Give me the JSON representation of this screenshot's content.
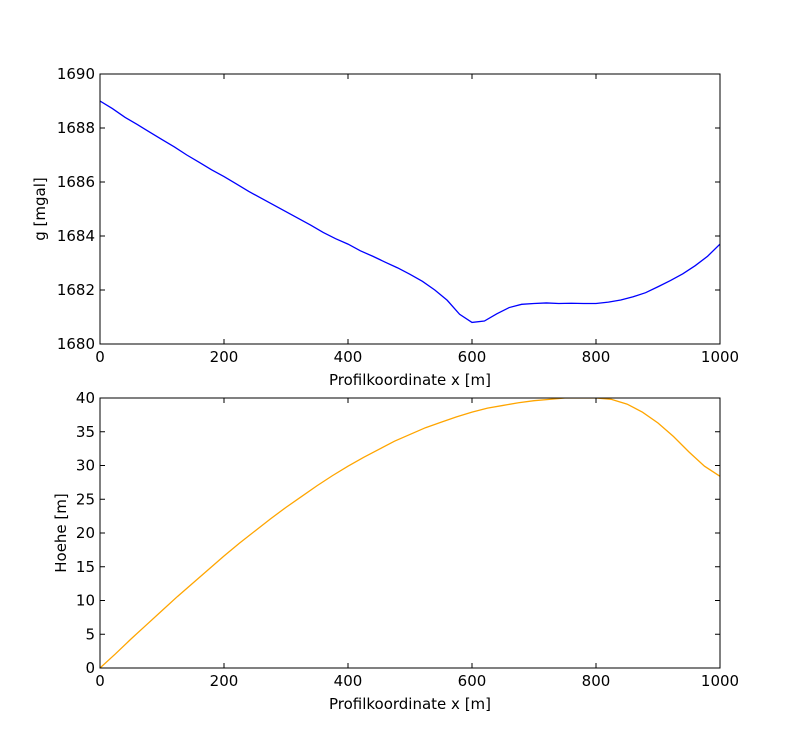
{
  "chart_data": [
    {
      "type": "line",
      "xlabel": "Profilkoordinate x [m]",
      "ylabel": "g [mgal]",
      "xlim": [
        0,
        1000
      ],
      "ylim": [
        1680,
        1690
      ],
      "xticks": [
        0,
        200,
        400,
        600,
        800,
        1000
      ],
      "yticks": [
        1680,
        1682,
        1684,
        1686,
        1688,
        1690
      ],
      "grid": false,
      "series": [
        {
          "color": "#0000ff",
          "x": [
            0,
            20,
            40,
            60,
            80,
            100,
            120,
            140,
            160,
            180,
            200,
            220,
            240,
            260,
            280,
            300,
            320,
            340,
            360,
            380,
            400,
            420,
            440,
            460,
            480,
            500,
            520,
            540,
            560,
            580,
            600,
            620,
            640,
            660,
            680,
            700,
            720,
            740,
            760,
            780,
            800,
            820,
            840,
            860,
            880,
            900,
            920,
            940,
            960,
            980,
            1000
          ],
          "y": [
            1689.0,
            1688.72,
            1688.4,
            1688.13,
            1687.85,
            1687.57,
            1687.3,
            1687.0,
            1686.73,
            1686.45,
            1686.2,
            1685.93,
            1685.65,
            1685.4,
            1685.15,
            1684.9,
            1684.65,
            1684.4,
            1684.13,
            1683.9,
            1683.7,
            1683.45,
            1683.25,
            1683.03,
            1682.82,
            1682.58,
            1682.32,
            1682.0,
            1681.62,
            1681.1,
            1680.8,
            1680.85,
            1681.12,
            1681.35,
            1681.47,
            1681.5,
            1681.52,
            1681.5,
            1681.51,
            1681.5,
            1681.5,
            1681.55,
            1681.63,
            1681.75,
            1681.9,
            1682.12,
            1682.35,
            1682.6,
            1682.9,
            1683.25,
            1683.7
          ]
        }
      ]
    },
    {
      "type": "line",
      "xlabel": "Profilkoordinate x [m]",
      "ylabel": "Hoehe [m]",
      "xlim": [
        0,
        1000
      ],
      "ylim": [
        0,
        40
      ],
      "xticks": [
        0,
        200,
        400,
        600,
        800,
        1000
      ],
      "yticks": [
        0,
        5,
        10,
        15,
        20,
        25,
        30,
        35,
        40
      ],
      "grid": false,
      "series": [
        {
          "color": "#ffa500",
          "x": [
            0,
            25,
            50,
            75,
            100,
            125,
            150,
            175,
            200,
            225,
            250,
            275,
            300,
            325,
            350,
            375,
            400,
            425,
            450,
            475,
            500,
            525,
            550,
            575,
            600,
            625,
            650,
            675,
            700,
            725,
            750,
            775,
            800,
            825,
            850,
            875,
            900,
            925,
            950,
            975,
            1000
          ],
          "y": [
            0.0,
            2.1,
            4.3,
            6.4,
            8.5,
            10.6,
            12.6,
            14.6,
            16.6,
            18.5,
            20.3,
            22.1,
            23.8,
            25.4,
            27.0,
            28.5,
            29.9,
            31.2,
            32.4,
            33.6,
            34.6,
            35.6,
            36.4,
            37.2,
            37.9,
            38.5,
            38.9,
            39.3,
            39.6,
            39.8,
            40.0,
            40.0,
            40.0,
            39.8,
            39.1,
            37.9,
            36.3,
            34.3,
            32.0,
            29.9,
            28.4
          ]
        }
      ]
    }
  ]
}
